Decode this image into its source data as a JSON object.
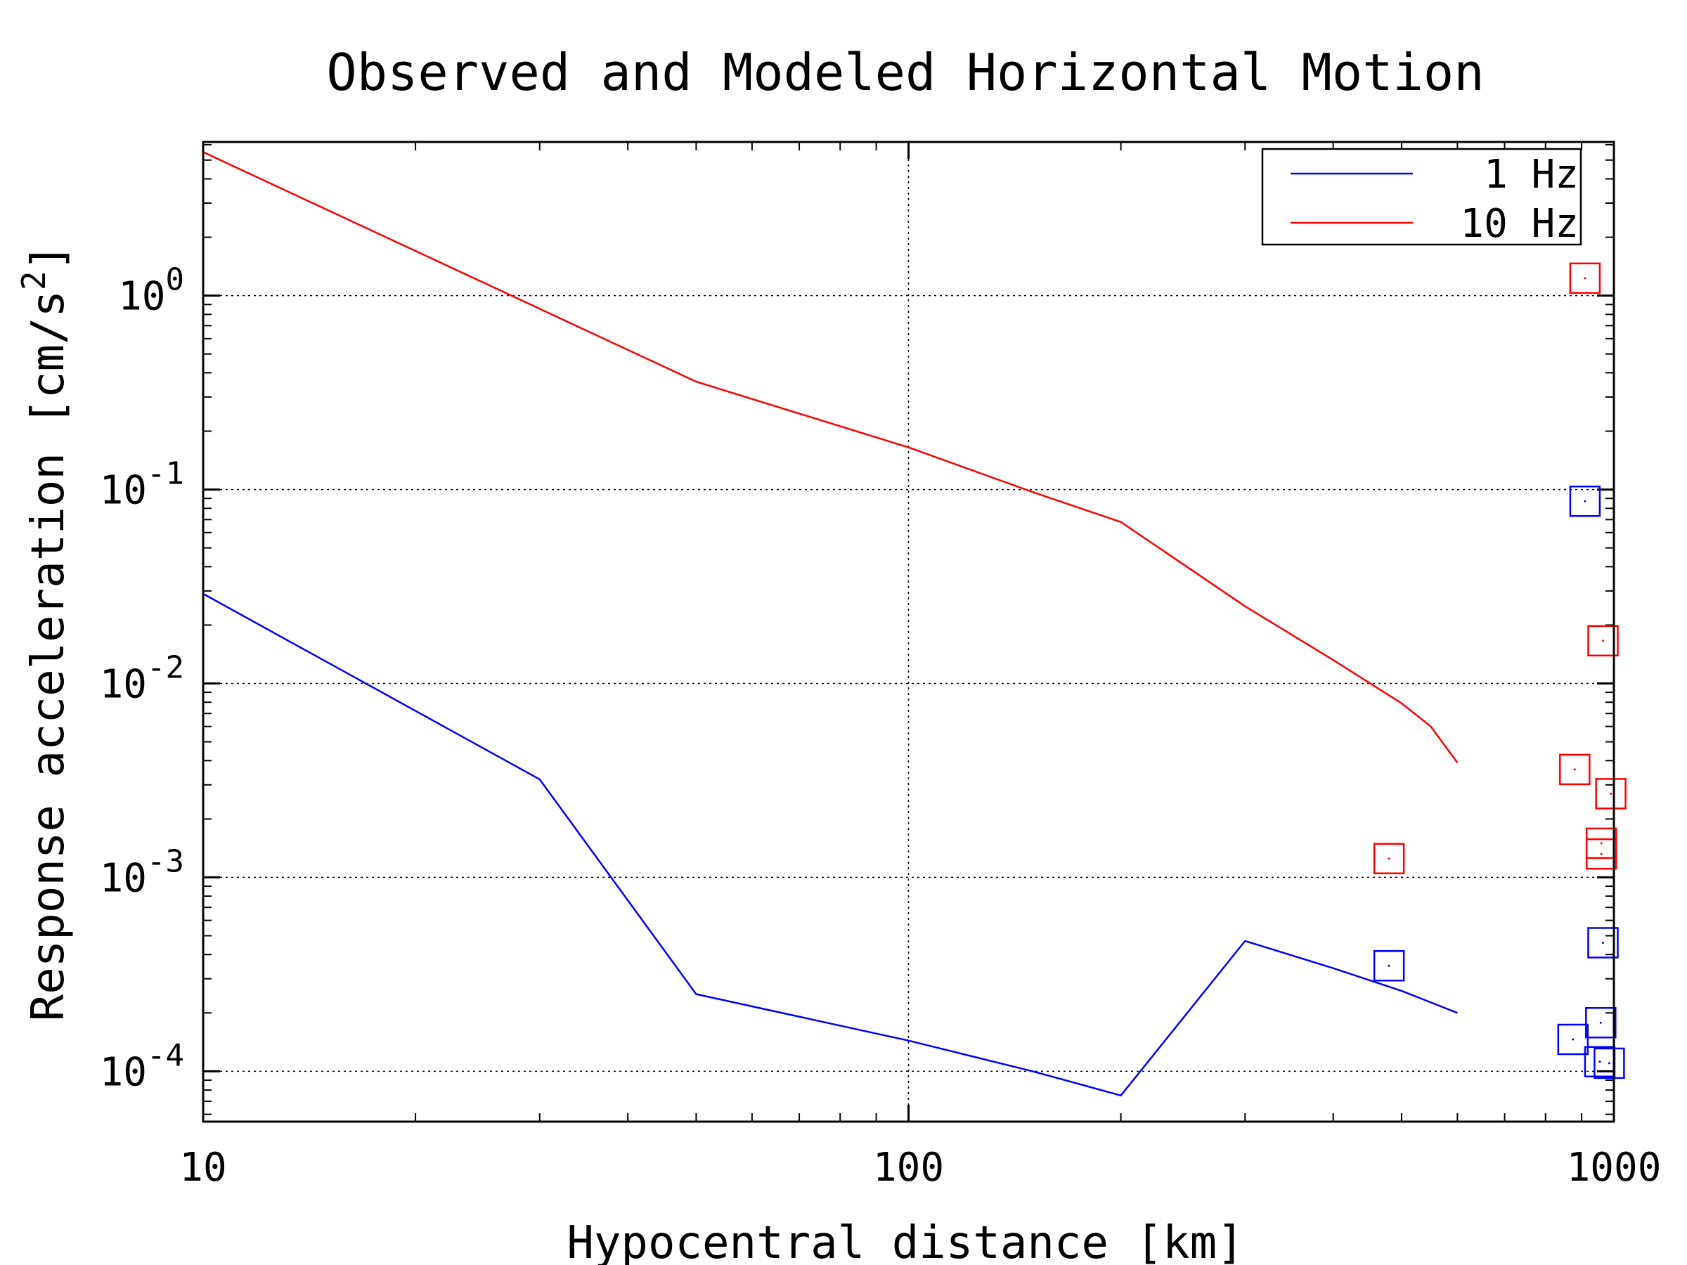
{
  "chart_data": {
    "type": "line",
    "title": "Observed and Modeled Horizontal Motion",
    "xlabel": "Hypocentral distance [km]",
    "ylabel": "Response acceleration [cm/s",
    "ylabel_superscript": "2",
    "ylabel_suffix": "]",
    "xscale": "log",
    "yscale": "log",
    "xlim": [
      10,
      1000
    ],
    "ylim": [
      5.5e-05,
      6.2
    ],
    "grid": true,
    "legend_position": "top-right",
    "x_ticks": [
      {
        "value": 10,
        "label": "10"
      },
      {
        "value": 100,
        "label": "100"
      },
      {
        "value": 1000,
        "label": "1000"
      }
    ],
    "y_ticks": [
      {
        "value": 1,
        "base": "10",
        "exp": "0"
      },
      {
        "value": 0.1,
        "base": "10",
        "exp": "-1"
      },
      {
        "value": 0.01,
        "base": "10",
        "exp": "-2"
      },
      {
        "value": 0.001,
        "base": "10",
        "exp": "-3"
      },
      {
        "value": 0.0001,
        "base": "10",
        "exp": "-4"
      }
    ],
    "series": [
      {
        "name": "1 Hz",
        "color": "#0000ff",
        "x": [
          10,
          30,
          50,
          100,
          150,
          200,
          300,
          400,
          500,
          600
        ],
        "y": [
          0.029,
          0.0032,
          0.00025,
          0.000144,
          0.0001,
          7.5e-05,
          0.00047,
          0.00034,
          0.00026,
          0.0002
        ]
      },
      {
        "name": "10 Hz",
        "color": "#ff0000",
        "x": [
          10,
          50,
          100,
          150,
          200,
          300,
          400,
          500,
          550,
          600
        ],
        "y": [
          5.5,
          0.36,
          0.165,
          0.097,
          0.068,
          0.025,
          0.0132,
          0.0079,
          0.006,
          0.0039
        ]
      }
    ],
    "observed": [
      {
        "series": "1 Hz",
        "color": "#0000ff",
        "x": 480,
        "y": 0.00035
      },
      {
        "series": "1 Hz",
        "color": "#0000ff",
        "x": 910,
        "y": 0.087
      },
      {
        "series": "1 Hz",
        "color": "#0000ff",
        "x": 965,
        "y": 0.00046
      },
      {
        "series": "1 Hz",
        "color": "#0000ff",
        "x": 958,
        "y": 0.000178
      },
      {
        "series": "1 Hz",
        "color": "#0000ff",
        "x": 875,
        "y": 0.000146
      },
      {
        "series": "1 Hz",
        "color": "#0000ff",
        "x": 955,
        "y": 0.000112
      },
      {
        "series": "1 Hz",
        "color": "#0000ff",
        "x": 985,
        "y": 0.00011
      },
      {
        "series": "10 Hz",
        "color": "#ff0000",
        "x": 910,
        "y": 1.23
      },
      {
        "series": "10 Hz",
        "color": "#ff0000",
        "x": 965,
        "y": 0.0166
      },
      {
        "series": "10 Hz",
        "color": "#ff0000",
        "x": 880,
        "y": 0.0036
      },
      {
        "series": "10 Hz",
        "color": "#ff0000",
        "x": 990,
        "y": 0.0027
      },
      {
        "series": "10 Hz",
        "color": "#ff0000",
        "x": 960,
        "y": 0.0015
      },
      {
        "series": "10 Hz",
        "color": "#ff0000",
        "x": 960,
        "y": 0.00132
      },
      {
        "series": "10 Hz",
        "color": "#ff0000",
        "x": 480,
        "y": 0.00125
      }
    ]
  }
}
